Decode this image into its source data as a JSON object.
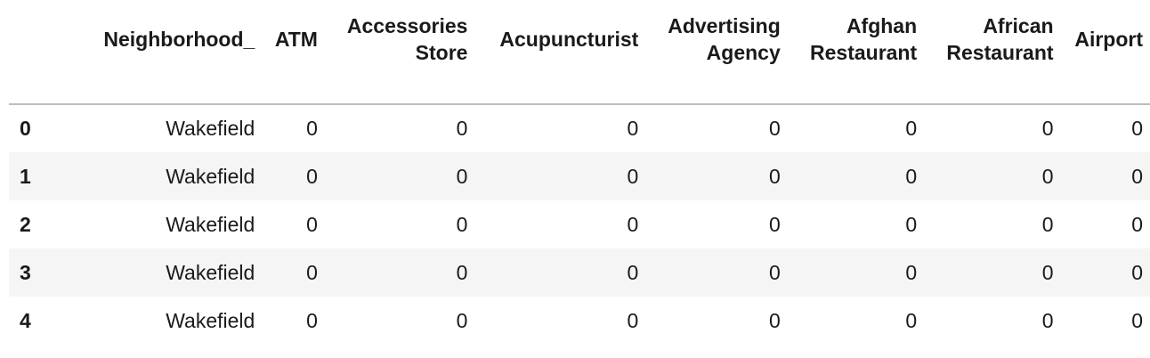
{
  "table": {
    "columns": [
      {
        "line1": "",
        "line2": "Neighborhood_"
      },
      {
        "line1": "",
        "line2": "ATM"
      },
      {
        "line1": "Accessories",
        "line2": "Store"
      },
      {
        "line1": "",
        "line2": "Acupuncturist"
      },
      {
        "line1": "Advertising",
        "line2": "Agency"
      },
      {
        "line1": "Afghan",
        "line2": "Restaurant"
      },
      {
        "line1": "African",
        "line2": "Restaurant"
      },
      {
        "line1": "",
        "line2": "Airport"
      }
    ],
    "rows": [
      {
        "index": "0",
        "cells": [
          "Wakefield",
          "0",
          "0",
          "0",
          "0",
          "0",
          "0",
          "0"
        ]
      },
      {
        "index": "1",
        "cells": [
          "Wakefield",
          "0",
          "0",
          "0",
          "0",
          "0",
          "0",
          "0"
        ]
      },
      {
        "index": "2",
        "cells": [
          "Wakefield",
          "0",
          "0",
          "0",
          "0",
          "0",
          "0",
          "0"
        ]
      },
      {
        "index": "3",
        "cells": [
          "Wakefield",
          "0",
          "0",
          "0",
          "0",
          "0",
          "0",
          "0"
        ]
      },
      {
        "index": "4",
        "cells": [
          "Wakefield",
          "0",
          "0",
          "0",
          "0",
          "0",
          "0",
          "0"
        ]
      }
    ]
  }
}
